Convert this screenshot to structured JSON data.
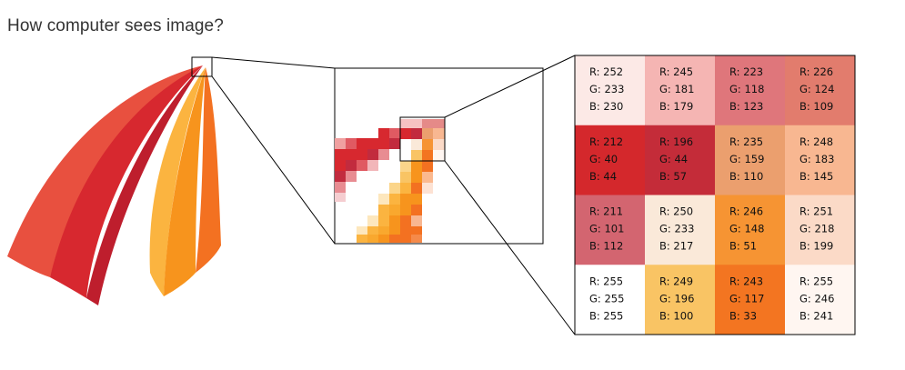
{
  "title": "How computer sees image?",
  "pixel_grid": {
    "label_prefixes": [
      "R: ",
      "G: ",
      "B: "
    ],
    "rows": [
      [
        {
          "r": 252,
          "g": 233,
          "b": 230
        },
        {
          "r": 245,
          "g": 181,
          "b": 179
        },
        {
          "r": 223,
          "g": 118,
          "b": 123
        },
        {
          "r": 226,
          "g": 124,
          "b": 109
        }
      ],
      [
        {
          "r": 212,
          "g": 40,
          "b": 44
        },
        {
          "r": 196,
          "g": 44,
          "b": 57
        },
        {
          "r": 235,
          "g": 159,
          "b": 110
        },
        {
          "r": 248,
          "g": 183,
          "b": 145
        }
      ],
      [
        {
          "r": 211,
          "g": 101,
          "b": 112
        },
        {
          "r": 250,
          "g": 233,
          "b": 217
        },
        {
          "r": 246,
          "g": 148,
          "b": 51
        },
        {
          "r": 251,
          "g": 218,
          "b": 199
        }
      ],
      [
        {
          "r": 255,
          "g": 255,
          "b": 255
        },
        {
          "r": 249,
          "g": 196,
          "b": 100
        },
        {
          "r": 243,
          "g": 117,
          "b": 33
        },
        {
          "r": 255,
          "g": 246,
          "b": 241
        }
      ]
    ]
  },
  "colors": {
    "red_dark": "#be1e2d",
    "red": "#d7282f",
    "red_light": "#e8503f",
    "orange_dark": "#f37121",
    "orange": "#f7941d",
    "yellow": "#fbb440"
  }
}
